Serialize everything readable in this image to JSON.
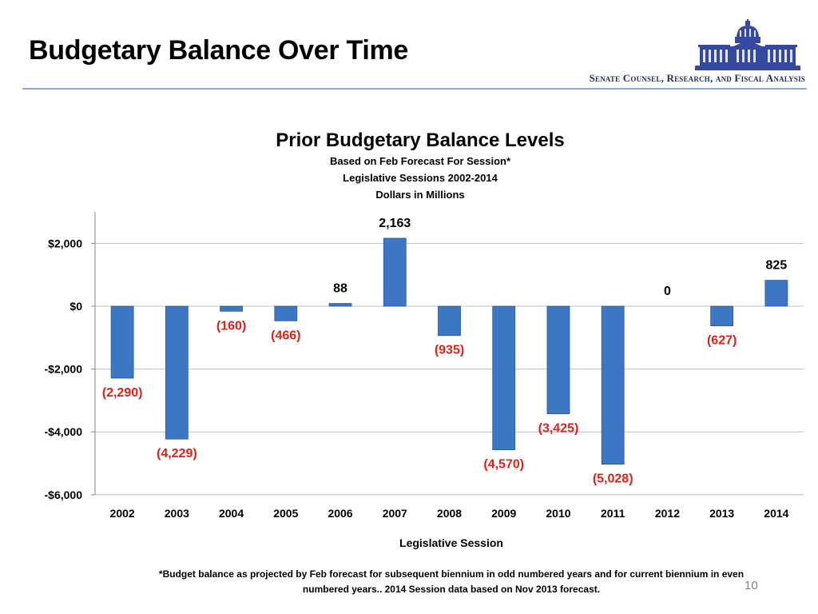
{
  "slide": {
    "title": "Budgetary Balance Over Time",
    "department": "Senate Counsel, Research, and Fiscal Analysis",
    "footnote_line1": "*Budget balance as projected  by Feb forecast for subsequent biennium in odd numbered years and for current biennium in even",
    "footnote_line2": "numbered years..  2014 Session data based on Nov 2013 forecast.",
    "page_number": "10"
  },
  "colors": {
    "bar": "#3d76c3",
    "bar_dark": "#2a5a9e",
    "negative_label": "#e0201a",
    "positive_label": "#000000",
    "gridline": "#bfbfbf",
    "logo": "#3549a0"
  },
  "chart_data": {
    "type": "bar",
    "title": "Prior Budgetary Balance Levels",
    "subtitles": [
      "Based on Feb Forecast For Session*",
      "Legislative Sessions 2002-2014",
      "Dollars in Millions"
    ],
    "xlabel": "Legislative Session",
    "ylabel": "",
    "categories": [
      "2002",
      "2003",
      "2004",
      "2005",
      "2006",
      "2007",
      "2008",
      "2009",
      "2010",
      "2011",
      "2012",
      "2013",
      "2014"
    ],
    "values": [
      -2290,
      -4229,
      -160,
      -466,
      88,
      2163,
      -935,
      -4570,
      -3425,
      -5028,
      0,
      -627,
      825
    ],
    "data_labels": [
      "(2,290)",
      "(4,229)",
      "(160)",
      "(466)",
      "88",
      "2,163",
      "(935)",
      "(4,570)",
      "(3,425)",
      "(5,028)",
      "0",
      "(627)",
      "825"
    ],
    "yticks": [
      2000,
      0,
      -2000,
      -4000,
      -6000
    ],
    "ytick_labels": [
      "$2,000",
      "$0",
      "-$2,000",
      "-$4,000",
      "-$6,000"
    ],
    "ylim": [
      -6000,
      3000
    ],
    "grid": true,
    "legend": "none"
  }
}
